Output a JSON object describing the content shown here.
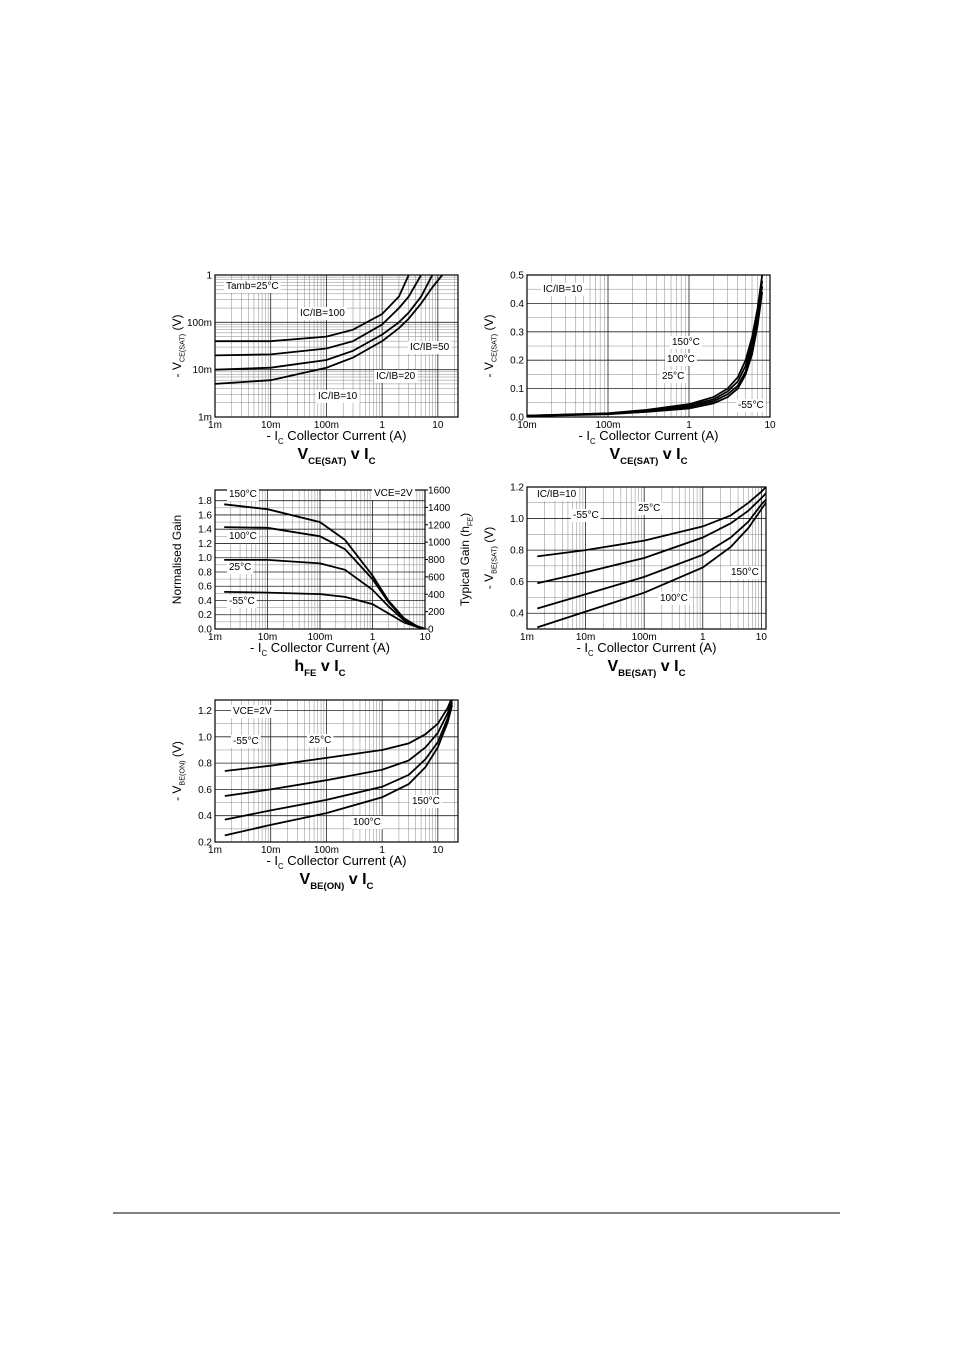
{
  "chart_data": [
    {
      "type": "line",
      "title": [
        "V",
        "CE(SAT)",
        " v I",
        "C"
      ],
      "x_label": [
        "- I",
        "C",
        "   Collector Current (A)"
      ],
      "y_label": [
        "- V",
        "CE(SAT)",
        "  (V)"
      ],
      "log_x": true,
      "log_y": true,
      "grid": true,
      "annotation": "Tamb=25°C",
      "xlim": [
        0.001,
        23
      ],
      "xticks": [
        {
          "value": 0.001,
          "label": "1m"
        },
        {
          "value": 0.01,
          "label": "10m"
        },
        {
          "value": 0.1,
          "label": "100m"
        },
        1,
        10
      ],
      "ylim": [
        0.001,
        1
      ],
      "yticks": [
        {
          "value": 0.001,
          "label": "1m"
        },
        {
          "value": 0.01,
          "label": "10m"
        },
        {
          "value": 0.1,
          "label": "100m"
        },
        1
      ],
      "x": [
        0.001,
        0.01,
        0.1,
        0.3,
        1,
        2,
        3,
        5,
        8,
        12
      ],
      "series": [
        {
          "name": "IC/IB=100",
          "color": "#000000",
          "values": [
            0.04,
            0.04,
            0.05,
            0.07,
            0.15,
            0.35,
            1.0,
            null,
            null,
            null
          ]
        },
        {
          "name": "IC/IB=50",
          "color": "#000000",
          "values": [
            0.02,
            0.021,
            0.028,
            0.04,
            0.09,
            0.2,
            0.35,
            1.0,
            null,
            null
          ]
        },
        {
          "name": "IC/IB=20",
          "color": "#000000",
          "values": [
            0.01,
            0.011,
            0.016,
            0.025,
            0.055,
            0.1,
            0.16,
            0.35,
            1.0,
            null
          ]
        },
        {
          "name": "IC/IB=10",
          "color": "#000000",
          "values": [
            0.005,
            0.006,
            0.011,
            0.018,
            0.04,
            0.075,
            0.12,
            0.25,
            0.55,
            1.0
          ]
        }
      ]
    },
    {
      "type": "line",
      "title": [
        "V",
        "CE(SAT)",
        " v I",
        "C"
      ],
      "x_label": [
        "- I",
        "C",
        "   Collector Current (A)"
      ],
      "y_label": [
        "- V",
        "CE(SAT)",
        "  (V)"
      ],
      "log_x": true,
      "log_y": false,
      "grid": true,
      "annotation": "IC/IB=10",
      "xlim": [
        0.01,
        10
      ],
      "xticks": [
        {
          "value": 0.01,
          "label": "10m"
        },
        {
          "value": 0.1,
          "label": "100m"
        },
        1,
        10
      ],
      "ylim": [
        0,
        0.5
      ],
      "yticks": [
        {
          "value": 0,
          "label": "0.0"
        },
        0.1,
        0.2,
        0.3,
        0.4,
        0.5
      ],
      "x": [
        0.01,
        0.1,
        0.3,
        1,
        2,
        3,
        4,
        5,
        6,
        7,
        8
      ],
      "series": [
        {
          "name": "150°C",
          "color": "#000000",
          "values": [
            0.005,
            0.013,
            0.025,
            0.045,
            0.07,
            0.1,
            0.14,
            0.2,
            0.28,
            0.38,
            0.5
          ]
        },
        {
          "name": "100°C",
          "color": "#000000",
          "values": [
            0.005,
            0.012,
            0.022,
            0.04,
            0.062,
            0.09,
            0.125,
            0.18,
            0.26,
            0.36,
            0.48
          ]
        },
        {
          "name": "25°C",
          "color": "#000000",
          "values": [
            0.004,
            0.011,
            0.02,
            0.035,
            0.055,
            0.08,
            0.11,
            0.16,
            0.24,
            0.34,
            0.46
          ]
        },
        {
          "name": "-55°C",
          "color": "#000000",
          "values": [
            0.003,
            0.01,
            0.018,
            0.03,
            0.048,
            0.07,
            0.1,
            0.15,
            0.22,
            0.32,
            0.44
          ]
        }
      ]
    },
    {
      "type": "line",
      "title": [
        "h",
        "FE",
        " v I",
        "C"
      ],
      "x_label": [
        "- I",
        "C",
        "   Collector Current (A)"
      ],
      "y_label": [
        "Normalised Gain"
      ],
      "y2_label": [
        "Typical Gain (h",
        "FE",
        ")"
      ],
      "log_x": true,
      "log_y": false,
      "grid": true,
      "annotation": "VCE=2V",
      "xlim": [
        0.001,
        10
      ],
      "xticks": [
        {
          "value": 0.001,
          "label": "1m"
        },
        {
          "value": 0.01,
          "label": "10m"
        },
        {
          "value": 0.1,
          "label": "100m"
        },
        1,
        10
      ],
      "ylim": [
        0,
        1.95
      ],
      "yticks": [
        {
          "value": 0,
          "label": "0.0"
        },
        0.2,
        0.4,
        0.6,
        0.8,
        {
          "value": 1,
          "label": "1.0"
        },
        1.2,
        1.4,
        1.6,
        1.8
      ],
      "y2lim": [
        0,
        1600
      ],
      "y2ticks": [
        0,
        200,
        400,
        600,
        800,
        1000,
        1200,
        1400,
        1600
      ],
      "x": [
        0.0015,
        0.01,
        0.1,
        0.3,
        1,
        2,
        4,
        7,
        10
      ],
      "series": [
        {
          "name": "150°C",
          "color": "#000000",
          "values": [
            1.75,
            1.68,
            1.5,
            1.25,
            0.75,
            0.4,
            0.15,
            0.04,
            0
          ]
        },
        {
          "name": "100°C",
          "color": "#000000",
          "values": [
            1.43,
            1.42,
            1.3,
            1.12,
            0.7,
            0.38,
            0.14,
            0.04,
            0
          ]
        },
        {
          "name": "25°C",
          "color": "#000000",
          "values": [
            0.97,
            0.97,
            0.92,
            0.83,
            0.55,
            0.32,
            0.12,
            0.03,
            0
          ]
        },
        {
          "name": "-55°C",
          "color": "#000000",
          "values": [
            0.52,
            0.51,
            0.49,
            0.45,
            0.35,
            0.22,
            0.09,
            0.03,
            0
          ]
        }
      ]
    },
    {
      "type": "line",
      "title": [
        "V",
        "BE(SAT)",
        " v I",
        "C"
      ],
      "x_label": [
        "- I",
        "C",
        "   Collector Current (A)"
      ],
      "y_label": [
        "- V",
        "BE(SAT)",
        "  (V)"
      ],
      "log_x": true,
      "log_y": false,
      "grid": true,
      "annotation": "IC/IB=10",
      "xlim": [
        0.001,
        12
      ],
      "xticks": [
        {
          "value": 0.001,
          "label": "1m"
        },
        {
          "value": 0.01,
          "label": "10m"
        },
        {
          "value": 0.1,
          "label": "100m"
        },
        1,
        10
      ],
      "ylim": [
        0.3,
        1.2
      ],
      "yticks": [
        0.4,
        0.6,
        0.8,
        {
          "value": 1,
          "label": "1.0"
        },
        1.2
      ],
      "x": [
        0.0015,
        0.01,
        0.1,
        1,
        3,
        6,
        10,
        12
      ],
      "series": [
        {
          "name": "-55°C",
          "color": "#000000",
          "values": [
            0.76,
            0.8,
            0.86,
            0.95,
            1.02,
            1.1,
            1.17,
            1.2
          ]
        },
        {
          "name": "25°C",
          "color": "#000000",
          "values": [
            0.59,
            0.66,
            0.75,
            0.88,
            0.97,
            1.05,
            1.13,
            1.16
          ]
        },
        {
          "name": "100°C",
          "color": "#000000",
          "values": [
            0.43,
            0.52,
            0.63,
            0.77,
            0.88,
            0.98,
            1.09,
            1.12
          ]
        },
        {
          "name": "150°C",
          "color": "#000000",
          "values": [
            0.31,
            0.41,
            0.53,
            0.69,
            0.82,
            0.94,
            1.06,
            1.1
          ]
        }
      ]
    },
    {
      "type": "line",
      "title": [
        "V",
        "BE(ON)",
        " v I",
        "C"
      ],
      "x_label": [
        "- I",
        "C",
        "   Collector Current (A)"
      ],
      "y_label": [
        "- V",
        "BE(ON)",
        "  (V)"
      ],
      "log_x": true,
      "log_y": false,
      "grid": true,
      "annotation": "VCE=2V",
      "xlim": [
        0.001,
        23
      ],
      "xticks": [
        {
          "value": 0.001,
          "label": "1m"
        },
        {
          "value": 0.01,
          "label": "10m"
        },
        {
          "value": 0.1,
          "label": "100m"
        },
        1,
        10
      ],
      "ylim": [
        0.2,
        1.28
      ],
      "yticks": [
        0.2,
        0.4,
        0.6,
        0.8,
        {
          "value": 1,
          "label": "1.0"
        },
        1.2
      ],
      "x": [
        0.0015,
        0.01,
        0.1,
        1,
        3,
        6,
        10,
        15,
        18
      ],
      "series": [
        {
          "name": "-55°C",
          "color": "#000000",
          "values": [
            0.74,
            0.78,
            0.84,
            0.9,
            0.95,
            1.02,
            1.1,
            1.22,
            1.3
          ]
        },
        {
          "name": "25°C",
          "color": "#000000",
          "values": [
            0.55,
            0.6,
            0.67,
            0.75,
            0.82,
            0.92,
            1.03,
            1.18,
            1.28
          ]
        },
        {
          "name": "100°C",
          "color": "#000000",
          "values": [
            0.37,
            0.44,
            0.52,
            0.62,
            0.71,
            0.83,
            0.96,
            1.14,
            1.26
          ]
        },
        {
          "name": "150°C",
          "color": "#000000",
          "values": [
            0.25,
            0.33,
            0.42,
            0.54,
            0.64,
            0.77,
            0.92,
            1.11,
            1.24
          ]
        }
      ]
    }
  ]
}
